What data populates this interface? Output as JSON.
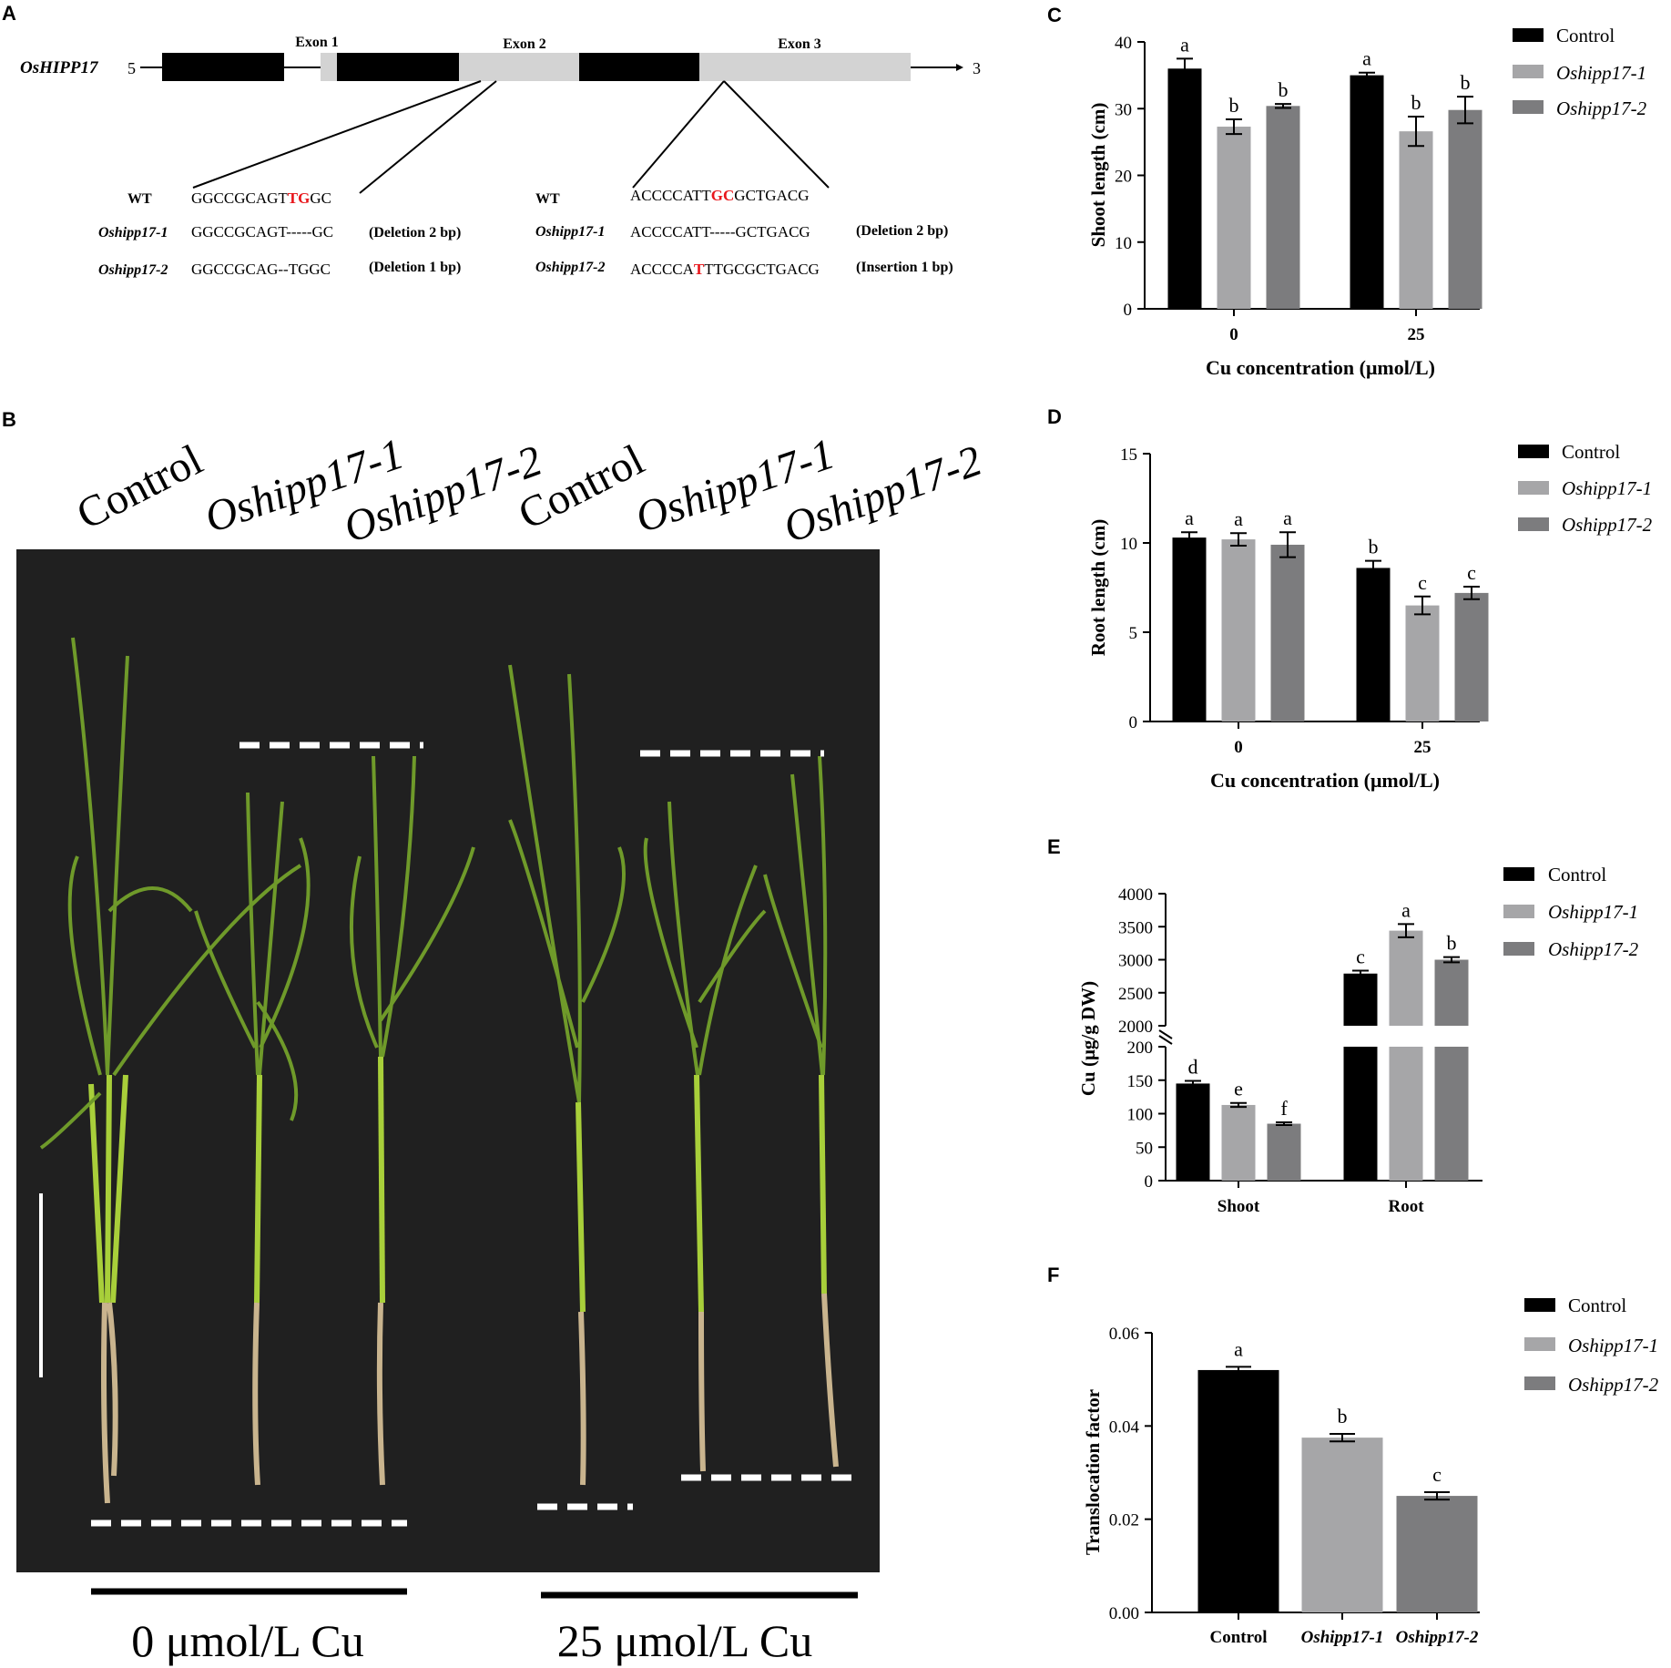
{
  "panel_labels": {
    "a": "A",
    "b": "B",
    "c": "C",
    "d": "D",
    "e": "E",
    "f": "F"
  },
  "gene_diagram": {
    "gene_name": "OsHIPP17",
    "five_prime": "5",
    "three_prime": "3",
    "exons": [
      "Exon 1",
      "Exon 2",
      "Exon 3"
    ],
    "colors": {
      "cds": "#000000",
      "utr": "#d3d3d3"
    },
    "site1": {
      "rows": [
        {
          "label": "WT",
          "seq_pre": "GGCCGCAGT",
          "seq_hl": "TG",
          "seq_post": "GC",
          "note": ""
        },
        {
          "label": "Oshipp17-1",
          "seq_pre": "GGCCGCAGT-----GC",
          "seq_hl": "",
          "seq_post": "",
          "note": "(Deletion 2 bp)"
        },
        {
          "label": "Oshipp17-2",
          "seq_pre": "GGCCGCAG--TGGC",
          "seq_hl": "",
          "seq_post": "",
          "note": "(Deletion 1 bp)"
        }
      ]
    },
    "site2": {
      "rows": [
        {
          "label": "WT",
          "seq_pre": "ACCCCATT",
          "seq_hl": "GC",
          "seq_post": "GCTGACG",
          "note": ""
        },
        {
          "label": "Oshipp17-1",
          "seq_pre": "ACCCCATT-----GCTGACG",
          "seq_hl": "",
          "seq_post": "",
          "note": "(Deletion 2 bp)"
        },
        {
          "label": "Oshipp17-2",
          "seq_pre": "ACCCCA",
          "seq_hl": "T",
          "seq_post": "TTGCGCTGACG",
          "note": "(Insertion 1 bp)"
        }
      ]
    },
    "highlight_color": "#e8161b"
  },
  "photo": {
    "labels": [
      "Control",
      "Oshipp17-1",
      "Oshipp17-2",
      "Control",
      "Oshipp17-1",
      "Oshipp17-2"
    ],
    "group_labels": [
      "0 μmol/L Cu",
      "25 μmol/L Cu"
    ],
    "background": "#202020"
  },
  "legend": {
    "control": "Control",
    "hipp1": "Oshipp17-1",
    "hipp2": "Oshipp17-2"
  },
  "colors": {
    "control": "#000000",
    "hipp1": "#a6a6a8",
    "hipp2": "#7c7c7e"
  },
  "chart_data": [
    {
      "id": "C",
      "type": "bar",
      "ylabel": "Shoot length (cm)",
      "xlabel": "Cu concentration (μmol/L)",
      "categories": [
        "0",
        "25"
      ],
      "ylim": [
        0,
        40
      ],
      "yticks": [
        0,
        10,
        20,
        30,
        40
      ],
      "series": [
        {
          "name": "Control",
          "values": [
            36.0,
            35.0
          ],
          "errors": [
            1.5,
            0.4
          ],
          "letters": [
            "a",
            "a"
          ]
        },
        {
          "name": "Oshipp17-1",
          "values": [
            27.3,
            26.6
          ],
          "errors": [
            1.1,
            2.2
          ],
          "letters": [
            "b",
            "b"
          ]
        },
        {
          "name": "Oshipp17-2",
          "values": [
            30.4,
            29.8
          ],
          "errors": [
            0.3,
            2.0
          ],
          "letters": [
            "b",
            "b"
          ]
        }
      ]
    },
    {
      "id": "D",
      "type": "bar",
      "ylabel": "Root length  (cm)",
      "xlabel": "Cu concentration (μmol/L)",
      "categories": [
        "0",
        "25"
      ],
      "ylim": [
        0,
        15
      ],
      "yticks": [
        0,
        5,
        10,
        15
      ],
      "series": [
        {
          "name": "Control",
          "values": [
            10.3,
            8.6
          ],
          "errors": [
            0.3,
            0.4
          ],
          "letters": [
            "a",
            "b"
          ]
        },
        {
          "name": "Oshipp17-1",
          "values": [
            10.2,
            6.5
          ],
          "errors": [
            0.35,
            0.5
          ],
          "letters": [
            "a",
            "c"
          ]
        },
        {
          "name": "Oshipp17-2",
          "values": [
            9.9,
            7.2
          ],
          "errors": [
            0.7,
            0.35
          ],
          "letters": [
            "a",
            "c"
          ]
        }
      ]
    },
    {
      "id": "E",
      "type": "bar",
      "ylabel": "Cu (μg/g DW)",
      "xlabel": "",
      "categories": [
        "Shoot",
        "Root"
      ],
      "broken_axis": {
        "lower": [
          0,
          200
        ],
        "upper": [
          2000,
          4000
        ]
      },
      "yticks_lower": [
        0,
        50,
        100,
        150,
        200
      ],
      "yticks_upper": [
        2000,
        2500,
        3000,
        3500,
        4000
      ],
      "series": [
        {
          "name": "Control",
          "values": [
            145,
            2790
          ],
          "errors": [
            4,
            45
          ],
          "letters": [
            "d",
            "c"
          ]
        },
        {
          "name": "Oshipp17-1",
          "values": [
            113,
            3440
          ],
          "errors": [
            3,
            100
          ],
          "letters": [
            "e",
            "a"
          ]
        },
        {
          "name": "Oshipp17-2",
          "values": [
            85,
            3000
          ],
          "errors": [
            2,
            40
          ],
          "letters": [
            "f",
            "b"
          ]
        }
      ]
    },
    {
      "id": "F",
      "type": "bar",
      "ylabel": "Translocation factor",
      "xlabel": "",
      "categories": [
        "Control",
        "Oshipp17-1",
        "Oshipp17-2"
      ],
      "ylim": [
        0,
        0.06
      ],
      "yticks": [
        "0.00",
        "0.02",
        "0.04",
        "0.06"
      ],
      "values": [
        0.052,
        0.0375,
        0.025
      ],
      "errors": [
        0.0007,
        0.0008,
        0.0008
      ],
      "letters": [
        "a",
        "b",
        "c"
      ]
    }
  ]
}
